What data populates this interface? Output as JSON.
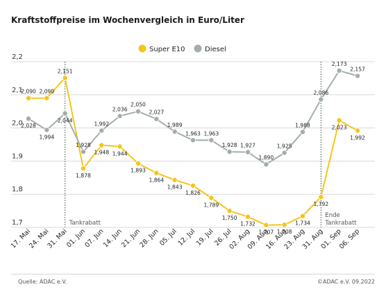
{
  "chart_data": {
    "type": "line",
    "title": "Kraftstoffpreise im Wochenvergleich in Euro/Liter",
    "categories": [
      "17. Mai",
      "24. Mai",
      "31. Mai",
      "01. Jun",
      "07. Jun",
      "14. Jun",
      "21. Jun",
      "28. Jun",
      "05. Jul",
      "12. Jul",
      "19. Jul",
      "26. Jul",
      "02. Aug",
      "09. Aug",
      "16. Aug",
      "23. Aug",
      "31. Aug",
      "01. Sep",
      "06. Sep"
    ],
    "series": [
      {
        "name": "Super E10",
        "color": "#f5c518",
        "values": [
          2.09,
          2.09,
          2.151,
          1.878,
          1.948,
          1.944,
          1.893,
          1.864,
          1.843,
          1.826,
          1.789,
          1.75,
          1.732,
          1.707,
          1.708,
          1.734,
          1.792,
          2.023,
          1.992
        ],
        "labels": [
          "2,090",
          "2,090",
          "2,151",
          "1,878",
          "1,948",
          "1,944",
          "1,893",
          "1,864",
          "1,843",
          "1,826",
          "1,789",
          "1,750",
          "1,732",
          "1,707",
          "1,708",
          "1,734",
          "1,792",
          "2,023",
          "1,992"
        ]
      },
      {
        "name": "Diesel",
        "color": "#a3aeab",
        "values": [
          2.028,
          1.994,
          2.044,
          1.928,
          1.992,
          2.036,
          2.05,
          2.027,
          1.989,
          1.963,
          1.963,
          1.928,
          1.927,
          1.89,
          1.925,
          1.988,
          2.086,
          2.173,
          2.157
        ],
        "labels": [
          "2,028",
          "1,994",
          "2,044",
          "1,928",
          "1,992",
          "2,036",
          "2,050",
          "2,027",
          "1,989",
          "1,963",
          "1,963",
          "1,928",
          "1,927",
          "1,890",
          "1,925",
          "1,988",
          "2,086",
          "2,173",
          "2,157"
        ]
      }
    ],
    "ylim": [
      1.7,
      2.2
    ],
    "yticks": [
      1.7,
      1.8,
      1.9,
      2.0,
      2.1,
      2.2
    ],
    "ytick_labels": [
      "1,7",
      "1,8",
      "1,9",
      "2,0",
      "2,1",
      "2,2"
    ],
    "grid": true,
    "legend": "top-center",
    "annotations": [
      {
        "category_index": 2,
        "lines": [
          "Tankrabatt"
        ]
      },
      {
        "category_index": 16,
        "lines": [
          "Ende",
          "Tankrabatt"
        ]
      }
    ]
  },
  "footer": {
    "source": "Quelle: ADAC e.V.",
    "copyright": "©ADAC e.V.  09.2022"
  }
}
